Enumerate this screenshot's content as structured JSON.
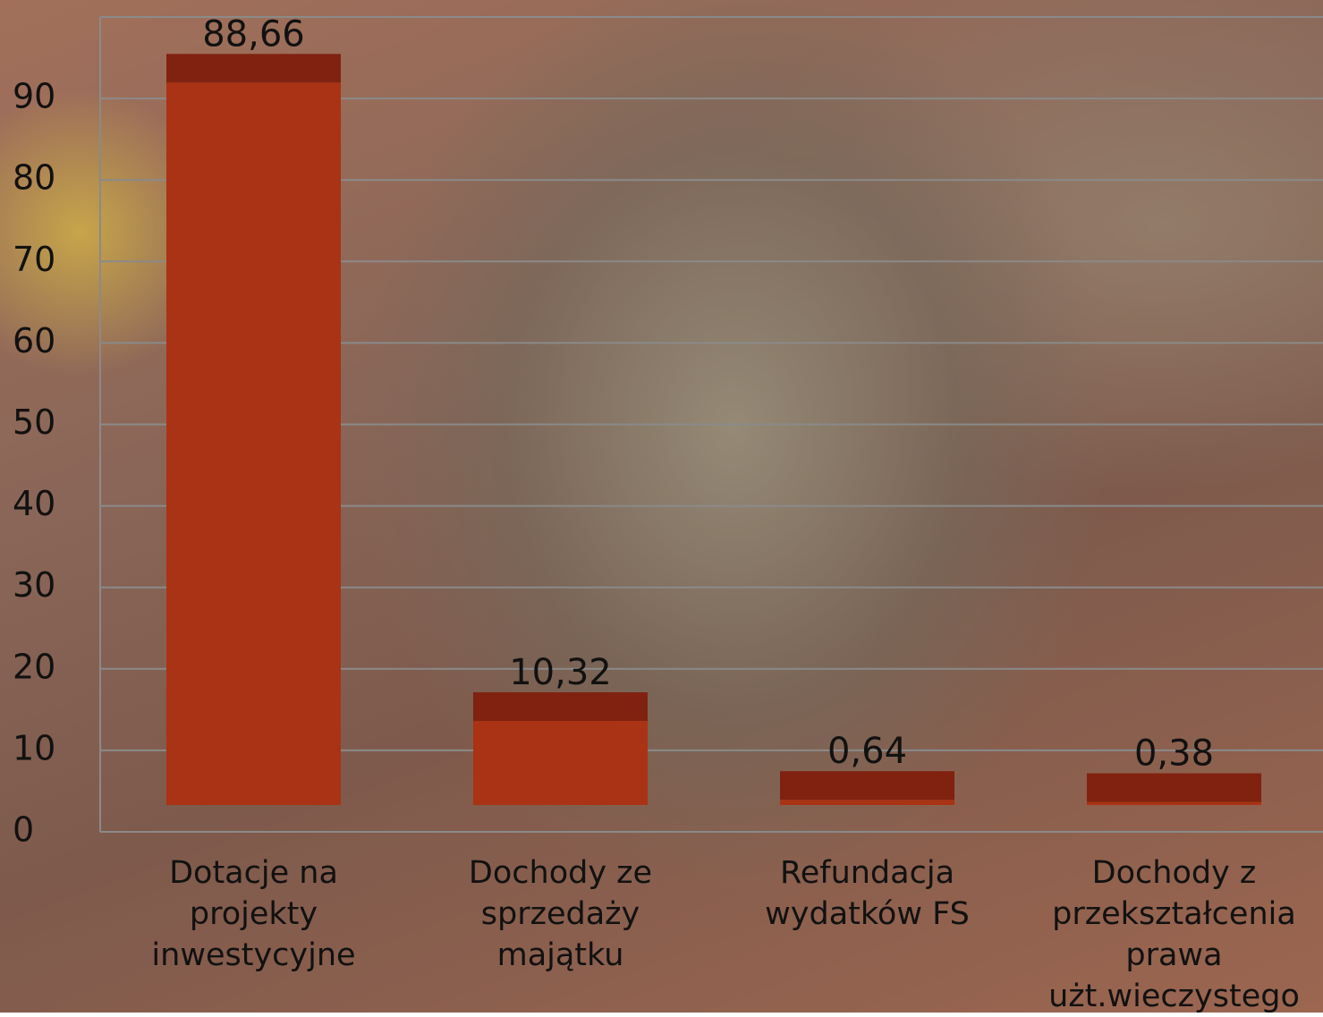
{
  "chart_data": {
    "type": "bar",
    "categories": [
      "Dotacje na projekty inwestycyjne",
      "Dochody ze sprzedaży majątku",
      "Refundacja wydatków FS",
      "Dochody z przekształcenia prawa użt.wieczystego"
    ],
    "values": [
      88.66,
      10.32,
      0.64,
      0.38
    ],
    "value_labels": [
      "88,66",
      "10,32",
      "0,64",
      "0,38"
    ],
    "color": "#a93314",
    "ylim": [
      0,
      100
    ],
    "yticks": [
      0,
      10,
      20,
      30,
      40,
      50,
      60,
      70,
      80,
      90
    ],
    "grid": true
  }
}
